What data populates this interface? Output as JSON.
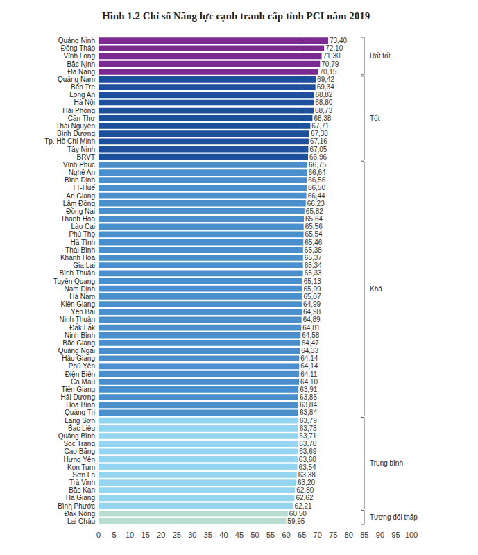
{
  "chart_data": {
    "type": "bar",
    "orientation": "horizontal",
    "title": "Hình 1.2 Chỉ số Năng lực cạnh tranh cấp tỉnh PCI năm 2019",
    "categories": [
      "Quảng Ninh",
      "Đồng Tháp",
      "Vĩnh Long",
      "Bắc Ninh",
      "Đà Nẵng",
      "Quảng Nam",
      "Bến Tre",
      "Long An",
      "Hà Nội",
      "Hải Phòng",
      "Cần Thơ",
      "Thái Nguyên",
      "Bình Dương",
      "Tp. Hồ Chí Minh",
      "Tây Ninh",
      "BRVT",
      "Vĩnh Phúc",
      "Nghệ An",
      "Bình Định",
      "TT-Huế",
      "An Giang",
      "Lâm Đồng",
      "Đồng Nai",
      "Thanh Hóa",
      "Lào Cai",
      "Phú Thọ",
      "Hà Tĩnh",
      "Thái Bình",
      "Khánh Hòa",
      "Gia Lai",
      "Bình Thuận",
      "Tuyên Quang",
      "Nam Định",
      "Hà Nam",
      "Kiên Giang",
      "Yên Bái",
      "Ninh Thuận",
      "Đắk Lắk",
      "Ninh Bình",
      "Bắc Giang",
      "Quảng Ngãi",
      "Hậu Giang",
      "Phú Yên",
      "Điện Biên",
      "Cà Mau",
      "Tiền Giang",
      "Hải Dương",
      "Hòa Bình",
      "Quảng Trị",
      "Lạng Sơn",
      "Bạc Liêu",
      "Quảng Bình",
      "Sóc Trăng",
      "Cao Bằng",
      "Hưng Yên",
      "Kon Tum",
      "Sơn La",
      "Trà Vinh",
      "Bắc Kạn",
      "Hà Giang",
      "Bình Phước",
      "Đắk Nông",
      "Lai Châu"
    ],
    "values": [
      73.4,
      72.1,
      71.3,
      70.79,
      70.15,
      69.42,
      69.34,
      68.82,
      68.8,
      68.73,
      68.38,
      67.71,
      67.38,
      67.16,
      67.05,
      66.96,
      66.75,
      66.64,
      66.56,
      66.5,
      66.44,
      66.23,
      65.82,
      65.64,
      65.56,
      65.54,
      65.46,
      65.38,
      65.37,
      65.34,
      65.33,
      65.13,
      65.09,
      65.07,
      64.99,
      64.98,
      64.89,
      64.81,
      64.58,
      64.47,
      64.33,
      64.14,
      64.14,
      64.11,
      64.1,
      63.91,
      63.85,
      63.84,
      63.84,
      63.79,
      63.78,
      63.71,
      63.7,
      63.69,
      63.6,
      63.54,
      63.38,
      63.2,
      62.8,
      62.62,
      62.21,
      60.5,
      59.95
    ],
    "value_labels": [
      "73,40",
      "72,10",
      "71,30",
      "70,79",
      "70,15",
      "69,42",
      "69,34",
      "68,82",
      "68,80",
      "68,73",
      "68,38",
      "67,71",
      "67,38",
      "67,16",
      "67,05",
      "66,96",
      "66,75",
      "66,64",
      "66,56",
      "66,50",
      "66,44",
      "66,23",
      "65,82",
      "65,64",
      "65,56",
      "65,54",
      "65,46",
      "65,38",
      "65,37",
      "65,34",
      "65,33",
      "65,13",
      "65,09",
      "65,07",
      "64,99",
      "64,98",
      "64,89",
      "64,81",
      "64,58",
      "64,47",
      "64,33",
      "64,14",
      "64,14",
      "64,11",
      "64,10",
      "63,91",
      "63,85",
      "63,84",
      "63,84",
      "63,79",
      "63,78",
      "63,71",
      "63,70",
      "63,69",
      "63,60",
      "63,54",
      "63,38",
      "63,20",
      "62,80",
      "62,62",
      "62,21",
      "60,50",
      "59,95"
    ],
    "groups": [
      {
        "name": "Rất tốt",
        "color": "#7a2b8f",
        "first": "Quảng Ninh",
        "last": "Đà Nẵng"
      },
      {
        "name": "Tốt",
        "color": "#1d4f9c",
        "first": "Quảng Nam",
        "last": "BRVT"
      },
      {
        "name": "Khá",
        "color": "#4a8fcb",
        "first": "Vĩnh Phúc",
        "last": "Quảng Trị"
      },
      {
        "name": "Trung bình",
        "color": "#95d5f0",
        "first": "Lạng Sơn",
        "last": "Bình Phước"
      },
      {
        "name": "Tương đối thấp",
        "color": "#b9ddd1",
        "first": "Đắk Nông",
        "last": "Lai Châu"
      }
    ],
    "reference_line": 65,
    "xlim": [
      0,
      100
    ],
    "xticks": [
      0,
      5,
      10,
      15,
      20,
      25,
      30,
      35,
      40,
      45,
      50,
      55,
      60,
      65,
      70,
      75,
      80,
      85,
      90,
      95,
      100
    ],
    "data_labels": true,
    "grid": false
  }
}
